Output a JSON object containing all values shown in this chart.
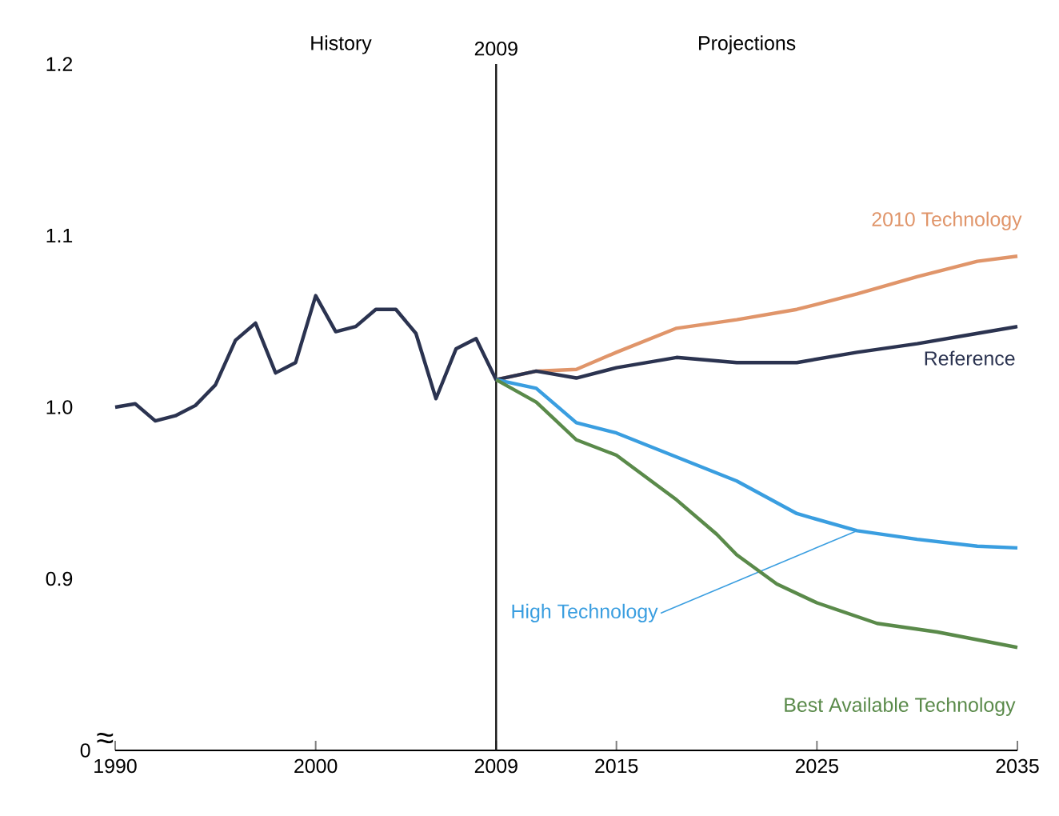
{
  "chart_data": {
    "type": "line",
    "annotations": [
      "History",
      "Projections",
      "≈",
      "0"
    ],
    "xlim": [
      1990,
      2035
    ],
    "xticks": [
      1990,
      2000,
      2009,
      2015,
      2025,
      2035
    ],
    "ylim": [
      0.8,
      1.2
    ],
    "yticks": [
      0.9,
      {
        "value": 1,
        "label": "1.0"
      },
      1.1,
      1.2
    ],
    "ref_lines": [
      {
        "axis": "x",
        "value": 2009,
        "label": "2009",
        "color": "#1a1a1a"
      }
    ],
    "series": [
      {
        "name": "2010 Technology",
        "color": "#e0956a",
        "x": [
          2009,
          2011,
          2013,
          2015,
          2018,
          2021,
          2024,
          2027,
          2030,
          2033,
          2035
        ],
        "values": [
          1.016,
          1.021,
          1.022,
          1.032,
          1.046,
          1.051,
          1.057,
          1.066,
          1.076,
          1.085,
          1.088
        ]
      },
      {
        "name": "Reference",
        "color": "#2b3350",
        "x": [
          1990,
          1991,
          1992,
          1993,
          1994,
          1995,
          1996,
          1997,
          1998,
          1999,
          2000,
          2001,
          2002,
          2003,
          2004,
          2005,
          2006,
          2007,
          2008,
          2009,
          2011,
          2013,
          2015,
          2018,
          2021,
          2024,
          2027,
          2030,
          2033,
          2035
        ],
        "values": [
          1.0,
          1.002,
          0.992,
          0.995,
          1.001,
          1.013,
          1.039,
          1.049,
          1.02,
          1.026,
          1.065,
          1.044,
          1.047,
          1.057,
          1.057,
          1.043,
          1.005,
          1.034,
          1.04,
          1.016,
          1.021,
          1.017,
          1.023,
          1.029,
          1.026,
          1.026,
          1.032,
          1.037,
          1.043,
          1.047
        ]
      },
      {
        "name": "High Technology",
        "color": "#3a9ee0",
        "x": [
          2009,
          2011,
          2013,
          2015,
          2018,
          2021,
          2024,
          2027,
          2030,
          2033,
          2035
        ],
        "values": [
          1.016,
          1.011,
          0.991,
          0.985,
          0.971,
          0.957,
          0.938,
          0.928,
          0.923,
          0.919,
          0.918
        ]
      },
      {
        "name": "Best Available Technology",
        "color": "#5a8a4a",
        "x": [
          2009,
          2011,
          2013,
          2015,
          2018,
          2020,
          2021,
          2023,
          2025,
          2028,
          2031,
          2035
        ],
        "values": [
          1.016,
          1.003,
          0.981,
          0.972,
          0.946,
          0.926,
          0.914,
          0.897,
          0.886,
          0.874,
          0.869,
          0.86
        ]
      }
    ]
  }
}
